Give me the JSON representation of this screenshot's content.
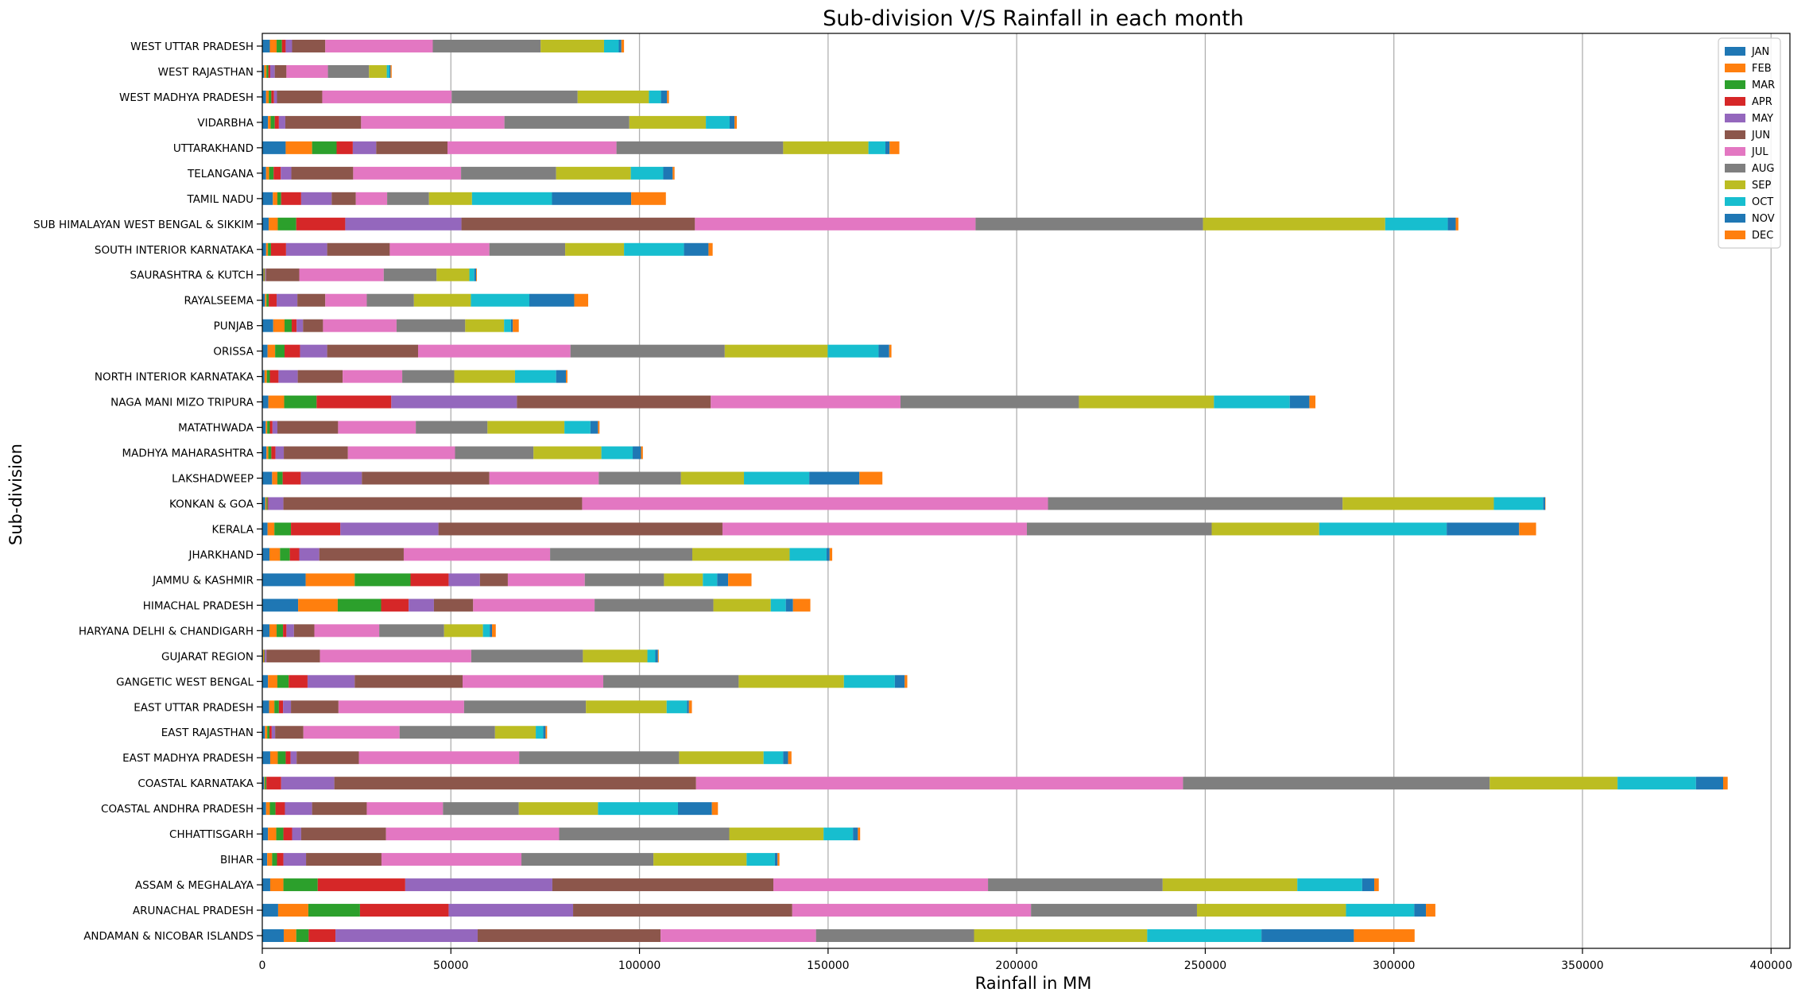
{
  "chart_data": {
    "type": "bar",
    "orientation": "horizontal",
    "stacked": true,
    "title": "Sub-division V/S Rainfall in each month",
    "xlabel": "Rainfall in MM",
    "ylabel": "Sub-division",
    "xlim": [
      0,
      405000
    ],
    "xticks": [
      0,
      50000,
      100000,
      150000,
      200000,
      250000,
      300000,
      350000,
      400000
    ],
    "grid": "x",
    "legend_position": "top-right",
    "categories": [
      "WEST UTTAR PRADESH",
      "WEST RAJASTHAN",
      "WEST MADHYA PRADESH",
      "VIDARBHA",
      "UTTARAKHAND",
      "TELANGANA",
      "TAMIL NADU",
      "SUB HIMALAYAN WEST BENGAL & SIKKIM",
      "SOUTH INTERIOR KARNATAKA",
      "SAURASHTRA & KUTCH",
      "RAYALSEEMA",
      "PUNJAB",
      "ORISSA",
      "NORTH INTERIOR KARNATAKA",
      "NAGA MANI MIZO TRIPURA",
      "MATATHWADA",
      "MADHYA MAHARASHTRA",
      "LAKSHADWEEP",
      "KONKAN & GOA",
      "KERALA",
      "JHARKHAND",
      "JAMMU & KASHMIR",
      "HIMACHAL PRADESH",
      "HARYANA DELHI & CHANDIGARH",
      "GUJARAT REGION",
      "GANGETIC WEST BENGAL",
      "EAST UTTAR PRADESH",
      "EAST RAJASTHAN",
      "EAST MADHYA PRADESH",
      "COASTAL KARNATAKA",
      "COASTAL ANDHRA PRADESH",
      "CHHATTISGARH",
      "BIHAR",
      "ASSAM & MEGHALAYA",
      "ARUNACHAL PRADESH",
      "ANDAMAN & NICOBAR ISLANDS"
    ],
    "series": [
      {
        "name": "JAN",
        "color": "#1f77b4",
        "values": [
          2000,
          500,
          1000,
          1500,
          6200,
          1000,
          2800,
          1700,
          1000,
          300,
          700,
          2900,
          1400,
          600,
          1600,
          900,
          1100,
          2600,
          800,
          1400,
          1900,
          11500,
          9500,
          1900,
          200,
          1500,
          1800,
          700,
          2100,
          500,
          1000,
          1500,
          1300,
          2100,
          4200,
          5700
        ]
      },
      {
        "name": "FEB",
        "color": "#ff7f0e",
        "values": [
          1800,
          600,
          700,
          700,
          7000,
          800,
          1200,
          2400,
          500,
          200,
          400,
          3000,
          2000,
          600,
          4200,
          400,
          500,
          1400,
          300,
          1800,
          2800,
          13000,
          10500,
          1900,
          200,
          2500,
          1400,
          600,
          2000,
          200,
          1000,
          2200,
          1300,
          3500,
          8000,
          3300
        ]
      },
      {
        "name": "MAR",
        "color": "#2ca02c",
        "values": [
          1400,
          500,
          700,
          1100,
          6500,
          1200,
          1000,
          4900,
          800,
          200,
          600,
          1900,
          2500,
          800,
          8600,
          700,
          800,
          1400,
          300,
          4400,
          2600,
          14800,
          11500,
          1700,
          200,
          3000,
          1200,
          600,
          2100,
          400,
          1500,
          1900,
          1300,
          9100,
          13700,
          3300
        ]
      },
      {
        "name": "APR",
        "color": "#d62728",
        "values": [
          1000,
          500,
          700,
          1100,
          4300,
          1900,
          5300,
          13000,
          4000,
          100,
          2100,
          1300,
          4100,
          2300,
          19800,
          700,
          1100,
          4800,
          200,
          13100,
          2500,
          10100,
          7300,
          900,
          100,
          5000,
          1100,
          600,
          1300,
          3900,
          2500,
          2300,
          1700,
          23200,
          23500,
          7100
        ]
      },
      {
        "name": "MAY",
        "color": "#9467bd",
        "values": [
          1700,
          1200,
          800,
          1700,
          6200,
          2800,
          8100,
          30800,
          10900,
          200,
          5500,
          1700,
          7200,
          5100,
          33300,
          1300,
          2200,
          16200,
          4000,
          26000,
          5300,
          8300,
          6700,
          2000,
          400,
          12500,
          2100,
          900,
          1600,
          14100,
          7200,
          2400,
          6000,
          39000,
          33000,
          37700
        ]
      },
      {
        "name": "JUN",
        "color": "#8c564b",
        "values": [
          8800,
          3100,
          12000,
          20100,
          18900,
          16400,
          6400,
          61900,
          16600,
          8800,
          7400,
          5300,
          24100,
          11900,
          51400,
          16100,
          17000,
          33800,
          79200,
          75300,
          22400,
          7400,
          10400,
          5400,
          14200,
          28600,
          12600,
          7500,
          16500,
          95900,
          14500,
          22500,
          20000,
          58600,
          58100,
          48500
        ]
      },
      {
        "name": "JUL",
        "color": "#e377c2",
        "values": [
          28500,
          11000,
          34300,
          38000,
          44800,
          28600,
          8300,
          74400,
          26400,
          22400,
          11000,
          19500,
          40400,
          15800,
          50300,
          20600,
          28400,
          29000,
          123500,
          80700,
          38800,
          20400,
          32200,
          17200,
          40100,
          37300,
          33300,
          25500,
          42500,
          129100,
          20200,
          45900,
          37100,
          56900,
          63300,
          41200
        ]
      },
      {
        "name": "AUG",
        "color": "#7f7f7f",
        "values": [
          28600,
          10900,
          33400,
          33100,
          44200,
          25200,
          11100,
          60300,
          20100,
          14000,
          12500,
          18200,
          40900,
          13800,
          47300,
          19000,
          20800,
          21800,
          78100,
          49000,
          37700,
          21000,
          31500,
          17200,
          29600,
          35900,
          32300,
          25300,
          42400,
          81300,
          20100,
          45100,
          35000,
          46300,
          44000,
          41900
        ]
      },
      {
        "name": "SEP",
        "color": "#bcbd22",
        "values": [
          16800,
          4700,
          18900,
          20300,
          22600,
          19800,
          11400,
          48300,
          15600,
          8700,
          15100,
          10300,
          27300,
          16100,
          35800,
          20400,
          18000,
          16700,
          40100,
          28500,
          25800,
          10300,
          15200,
          10300,
          17100,
          27900,
          21400,
          10800,
          22400,
          33900,
          21000,
          25000,
          24700,
          35700,
          39500,
          45900
        ]
      },
      {
        "name": "OCT",
        "color": "#17becf",
        "values": [
          3900,
          700,
          3200,
          6300,
          4500,
          8600,
          21200,
          16600,
          15900,
          1300,
          15500,
          1800,
          13500,
          10900,
          20100,
          6900,
          8300,
          17300,
          13100,
          33800,
          9800,
          3800,
          4000,
          1800,
          2100,
          13500,
          5400,
          2000,
          5200,
          20800,
          21200,
          7800,
          7500,
          17200,
          18100,
          30300
        ]
      },
      {
        "name": "NOV",
        "color": "#1f77b4",
        "values": [
          700,
          300,
          1600,
          1300,
          1100,
          2500,
          21000,
          2100,
          6500,
          500,
          11900,
          500,
          2800,
          2600,
          5200,
          2000,
          2200,
          13300,
          500,
          19200,
          800,
          2900,
          1900,
          600,
          700,
          2600,
          500,
          600,
          1300,
          7200,
          9000,
          1300,
          700,
          3200,
          3100,
          24500
        ]
      },
      {
        "name": "DEC",
        "color": "#ff7f0e",
        "values": [
          700,
          300,
          500,
          600,
          2600,
          500,
          9200,
          700,
          1100,
          200,
          3700,
          1600,
          600,
          400,
          1600,
          400,
          500,
          6100,
          100,
          4500,
          700,
          6200,
          4600,
          1000,
          200,
          700,
          800,
          400,
          900,
          1200,
          1600,
          600,
          500,
          1200,
          2500,
          16100
        ]
      }
    ]
  }
}
